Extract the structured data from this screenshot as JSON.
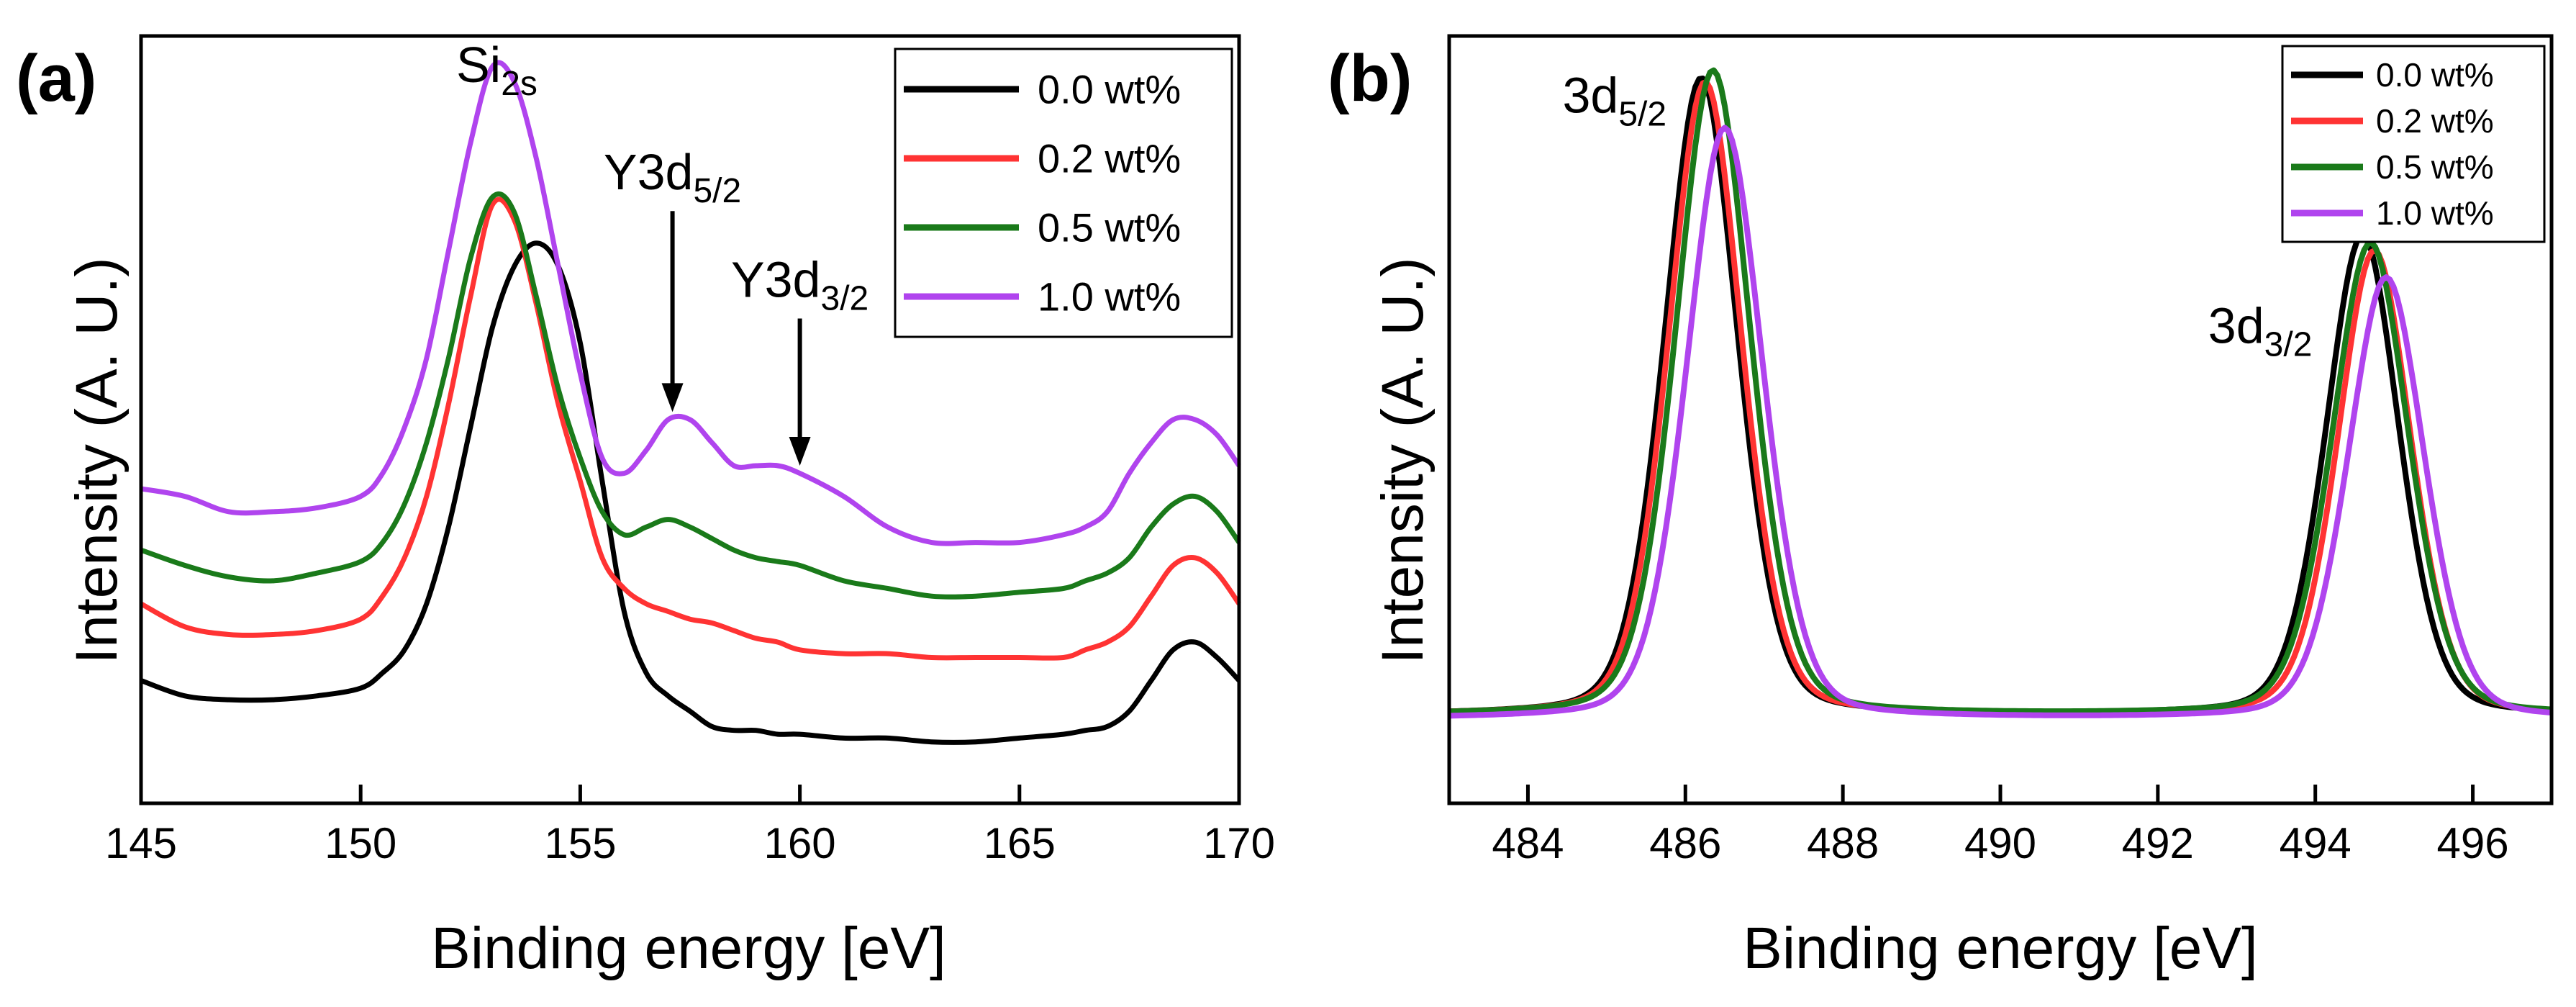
{
  "chart_data": [
    {
      "panel": "(a)",
      "type": "line",
      "xlabel": "Binding energy [eV]",
      "ylabel": "Intensity (A. U.)",
      "xlim": [
        145,
        170
      ],
      "ylim": [
        0,
        1
      ],
      "xticks": [
        "145",
        "150",
        "155",
        "160",
        "165",
        "170"
      ],
      "y_ticks_shown": false,
      "legend": {
        "position": "top-right"
      },
      "annotations": [
        {
          "main": "Si",
          "sub": "2s",
          "x": 153.1,
          "y": 0.94,
          "arrow": false
        },
        {
          "main": "Y3d",
          "sub": "5/2",
          "x": 157.1,
          "y": 0.8,
          "arrow": true,
          "arrow_to_y": 0.51
        },
        {
          "main": "Y3d",
          "sub": "3/2",
          "x": 160.0,
          "y": 0.66,
          "arrow": true,
          "arrow_to_y": 0.44
        }
      ],
      "x": [
        145,
        146,
        147,
        148,
        149,
        150,
        150.5,
        151,
        151.5,
        152,
        152.5,
        153,
        153.5,
        154,
        154.5,
        155,
        155.5,
        156,
        156.5,
        157,
        157.5,
        158,
        158.5,
        159,
        159.5,
        160,
        161,
        162,
        163,
        164,
        165,
        166,
        166.5,
        167,
        167.5,
        168,
        168.5,
        169,
        169.5,
        170
      ],
      "series": [
        {
          "name": "0.0 wt%",
          "color": "#000000",
          "values": [
            0.16,
            0.14,
            0.135,
            0.135,
            0.14,
            0.15,
            0.17,
            0.2,
            0.26,
            0.36,
            0.49,
            0.62,
            0.7,
            0.73,
            0.7,
            0.6,
            0.42,
            0.25,
            0.17,
            0.14,
            0.12,
            0.1,
            0.095,
            0.095,
            0.09,
            0.09,
            0.085,
            0.085,
            0.08,
            0.08,
            0.085,
            0.09,
            0.095,
            0.1,
            0.12,
            0.16,
            0.2,
            0.21,
            0.19,
            0.16
          ]
        },
        {
          "name": "0.2 wt%",
          "color": "#ff3333",
          "values": [
            0.26,
            0.23,
            0.22,
            0.22,
            0.225,
            0.24,
            0.27,
            0.32,
            0.4,
            0.52,
            0.66,
            0.78,
            0.76,
            0.65,
            0.52,
            0.42,
            0.32,
            0.28,
            0.26,
            0.25,
            0.24,
            0.235,
            0.225,
            0.215,
            0.21,
            0.2,
            0.195,
            0.195,
            0.19,
            0.19,
            0.19,
            0.19,
            0.2,
            0.21,
            0.23,
            0.27,
            0.31,
            0.32,
            0.3,
            0.26
          ]
        },
        {
          "name": "0.5 wt%",
          "color": "#1a7a1a",
          "values": [
            0.33,
            0.31,
            0.295,
            0.29,
            0.3,
            0.315,
            0.34,
            0.39,
            0.47,
            0.58,
            0.71,
            0.79,
            0.77,
            0.66,
            0.54,
            0.45,
            0.38,
            0.35,
            0.36,
            0.37,
            0.36,
            0.345,
            0.33,
            0.32,
            0.315,
            0.31,
            0.29,
            0.28,
            0.27,
            0.27,
            0.275,
            0.28,
            0.29,
            0.3,
            0.32,
            0.36,
            0.39,
            0.4,
            0.38,
            0.34
          ]
        },
        {
          "name": "1.0 wt%",
          "color": "#b044ee",
          "values": [
            0.41,
            0.4,
            0.38,
            0.38,
            0.385,
            0.4,
            0.43,
            0.49,
            0.58,
            0.72,
            0.86,
            0.96,
            0.94,
            0.84,
            0.7,
            0.56,
            0.45,
            0.43,
            0.46,
            0.5,
            0.5,
            0.47,
            0.44,
            0.44,
            0.44,
            0.43,
            0.4,
            0.36,
            0.34,
            0.34,
            0.34,
            0.35,
            0.36,
            0.38,
            0.43,
            0.47,
            0.5,
            0.5,
            0.48,
            0.44
          ]
        }
      ]
    },
    {
      "panel": "(b)",
      "type": "line",
      "xlabel": "Binding energy [eV]",
      "ylabel": "Intensity (A. U.)",
      "xlim": [
        483,
        497
      ],
      "ylim": [
        0,
        1
      ],
      "xticks": [
        "484",
        "486",
        "488",
        "490",
        "492",
        "494",
        "496"
      ],
      "y_ticks_shown": false,
      "legend": {
        "position": "top-right"
      },
      "annotations": [
        {
          "main": "3d",
          "sub": "5/2",
          "x": 485.1,
          "y": 0.9
        },
        {
          "main": "3d",
          "sub": "3/2",
          "x": 493.3,
          "y": 0.6
        }
      ],
      "series": [
        {
          "name": "0.0 wt%",
          "color": "#000000",
          "baseline": 0.115,
          "peaks": [
            {
              "center": 486.2,
              "height": 0.83,
              "width": 0.48
            },
            {
              "center": 494.6,
              "height": 0.625,
              "width": 0.48
            }
          ]
        },
        {
          "name": "0.2 wt%",
          "color": "#ff3333",
          "baseline": 0.115,
          "peaks": [
            {
              "center": 486.25,
              "height": 0.825,
              "width": 0.48
            },
            {
              "center": 494.75,
              "height": 0.605,
              "width": 0.48
            }
          ]
        },
        {
          "name": "0.5 wt%",
          "color": "#1a7a1a",
          "baseline": 0.115,
          "peaks": [
            {
              "center": 486.35,
              "height": 0.84,
              "width": 0.49
            },
            {
              "center": 494.7,
              "height": 0.615,
              "width": 0.5
            }
          ]
        },
        {
          "name": "1.0 wt%",
          "color": "#b044ee",
          "baseline": 0.11,
          "peaks": [
            {
              "center": 486.5,
              "height": 0.77,
              "width": 0.5
            },
            {
              "center": 494.9,
              "height": 0.575,
              "width": 0.5
            }
          ]
        }
      ]
    }
  ]
}
